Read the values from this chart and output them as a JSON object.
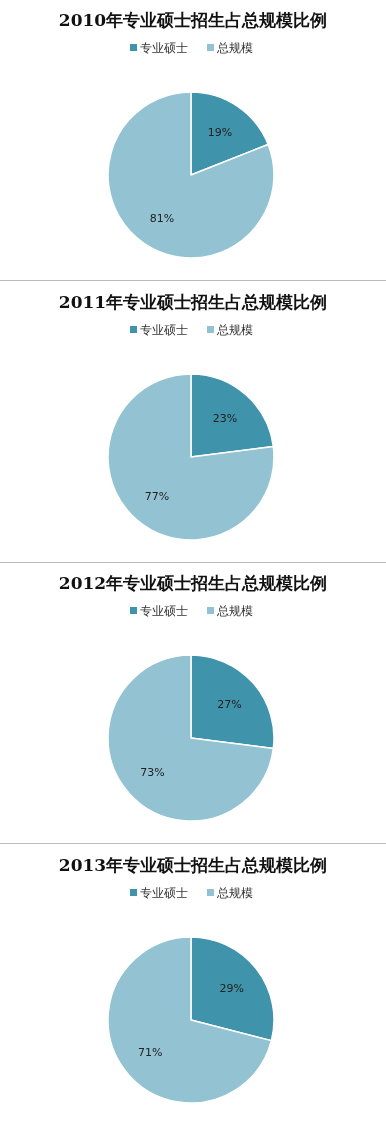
{
  "chart_data": [
    {
      "type": "pie",
      "title": "2010年专业硕士招生占总规模比例",
      "categories": [
        "专业硕士",
        "总规模"
      ],
      "values": [
        19,
        81
      ],
      "colors": [
        "#3f93ab",
        "#93c3d3"
      ],
      "value_labels": [
        "19%",
        "81%"
      ],
      "legend": "top"
    },
    {
      "type": "pie",
      "title": "2011年专业硕士招生占总规模比例",
      "categories": [
        "专业硕士",
        "总规模"
      ],
      "values": [
        23,
        77
      ],
      "colors": [
        "#3f93ab",
        "#93c3d3"
      ],
      "value_labels": [
        "23%",
        "77%"
      ],
      "legend": "top"
    },
    {
      "type": "pie",
      "title": "2012年专业硕士招生占总规模比例",
      "categories": [
        "专业硕士",
        "总规模"
      ],
      "values": [
        27,
        73
      ],
      "colors": [
        "#3f93ab",
        "#93c3d3"
      ],
      "value_labels": [
        "27%",
        "73%"
      ],
      "legend": "top"
    },
    {
      "type": "pie",
      "title": "2013年专业硕士招生占总规模比例",
      "categories": [
        "专业硕士",
        "总规模"
      ],
      "values": [
        29,
        71
      ],
      "colors": [
        "#3f93ab",
        "#93c3d3"
      ],
      "value_labels": [
        "29%",
        "71%"
      ],
      "legend": "top"
    }
  ]
}
